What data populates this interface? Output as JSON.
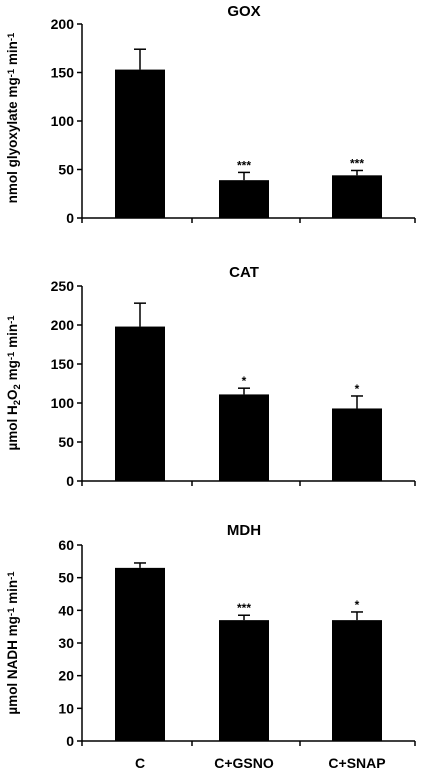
{
  "chart_data": [
    {
      "type": "bar",
      "title": "GOX",
      "ylabel": "nmol glyoxylate mg-1 min-1",
      "ylim": [
        0,
        200
      ],
      "yticks": [
        0,
        50,
        100,
        150,
        200
      ],
      "categories": [
        "C",
        "C+GSNO",
        "C+SNAP"
      ],
      "values": [
        153,
        39,
        44
      ],
      "errors": [
        21,
        8,
        5
      ],
      "significance": [
        "",
        "***",
        "***"
      ]
    },
    {
      "type": "bar",
      "title": "CAT",
      "ylabel": "µmol H2O2 mg-1 min-1",
      "ylim": [
        0,
        250
      ],
      "yticks": [
        0,
        50,
        100,
        150,
        200,
        250
      ],
      "categories": [
        "C",
        "C+GSNO",
        "C+SNAP"
      ],
      "values": [
        198,
        111,
        93
      ],
      "errors": [
        30,
        8,
        16
      ],
      "significance": [
        "",
        "*",
        "*"
      ]
    },
    {
      "type": "bar",
      "title": "MDH",
      "ylabel": "µmol NADH mg-1 min-1",
      "ylim": [
        0,
        60
      ],
      "yticks": [
        0,
        10,
        20,
        30,
        40,
        50,
        60
      ],
      "categories": [
        "C",
        "C+GSNO",
        "C+SNAP"
      ],
      "values": [
        53,
        37,
        37
      ],
      "errors": [
        1.5,
        1.5,
        2.5
      ],
      "significance": [
        "",
        "***",
        "*"
      ]
    }
  ],
  "xcategories": [
    "C",
    "C+GSNO",
    "C+SNAP"
  ]
}
